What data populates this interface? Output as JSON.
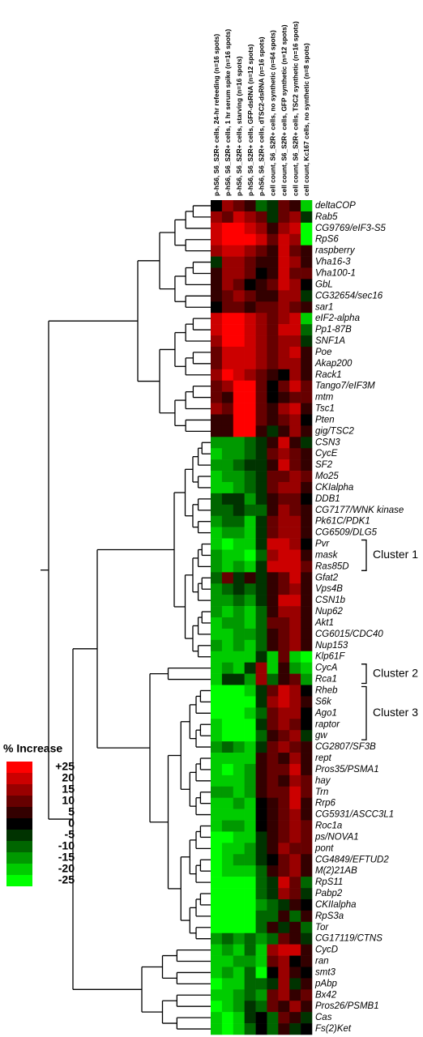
{
  "chart_data": {
    "type": "heatmap",
    "columns": [
      "p-hS6, S6_S2R+ cells, 24-hr refeeding (n=16 spots)",
      "p-hS6, S6_S2R+ cells, 1 hr serum spike (n=16 spots)",
      "p-hS6, S6_S2R+ cells, starving (n=16 spots)",
      "p-hS6, S6_S2R+ cells, GFP-dsRNA (n=12 spots)",
      "p-hS6, S6_S2R+ cells, dTSC2-dsRNA (n=16 spots)",
      "cell count, S6_S2R+ cells, no synthetic (n=64 spots)",
      "cell count, S6_S2R+ cells, GFP synthetic (n=12 spots)",
      "cell count, S6_S2R+ cells, TSC2 synthetic (n=16 spots)",
      "cell count, Kc167 cells, no synthetic (n=8 spots)"
    ],
    "rows": [
      "deltaCOP",
      "Rab5",
      "CG9769/eIF3-S5",
      "RpS6",
      "raspberry",
      "Vha16-3",
      "Vha100-1",
      "GbL",
      "CG32654/sec16",
      "sar1",
      "eIF2-alpha",
      "Pp1-87B",
      "SNF1A",
      "Poe",
      "Akap200",
      "Rack1",
      "Tango7/eIF3M",
      "mtm",
      "Tsc1",
      "Pten",
      "gig/TSC2",
      "CSN3",
      "CycE",
      "SF2",
      "Mo25",
      "CKIalpha",
      "DDB1",
      "CG7177/WNK kinase",
      "Pk61C/PDK1",
      "CG6509/DLG5",
      "Pvr",
      "mask",
      "Ras85D",
      "Gfat2",
      "Vps4B",
      "CSN1b",
      "Nup62",
      "Akt1",
      "CG6015/CDC40",
      "Nup153",
      "Klp61F",
      "CycA",
      "Rca1",
      "Rheb",
      "S6k",
      "Ago1",
      "raptor",
      "gw",
      "CG2807/SF3B",
      "rept",
      "Pros35/PSMA1",
      "hay",
      "Trn",
      "Rrp6",
      "CG5931/ASCC3L1",
      "Roc1a",
      "ps/NOVA1",
      "pont",
      "CG4849/EFTUD2",
      "M(2)21AB",
      "RpS11",
      "Pabp2",
      "CKIIalpha",
      "RpS3a",
      "Tor",
      "CG17119/CTNS",
      "CycD",
      "ran",
      "smt3",
      "pAbp",
      "Bx42",
      "Pros26/PSMB1",
      "Cas",
      "Fs(2)Ket"
    ],
    "values": [
      [
        0,
        15,
        10,
        5,
        -10,
        -5,
        10,
        5,
        -20
      ],
      [
        15,
        10,
        20,
        15,
        10,
        -5,
        10,
        15,
        -5
      ],
      [
        20,
        25,
        25,
        20,
        15,
        5,
        15,
        20,
        -25
      ],
      [
        20,
        25,
        25,
        25,
        20,
        10,
        20,
        15,
        -25
      ],
      [
        15,
        20,
        20,
        15,
        10,
        5,
        20,
        10,
        5
      ],
      [
        -5,
        15,
        15,
        10,
        5,
        5,
        20,
        15,
        5
      ],
      [
        5,
        15,
        15,
        10,
        0,
        5,
        20,
        10,
        10
      ],
      [
        5,
        15,
        10,
        0,
        5,
        10,
        20,
        15,
        0
      ],
      [
        5,
        10,
        15,
        10,
        5,
        5,
        15,
        15,
        -5
      ],
      [
        0,
        10,
        10,
        5,
        10,
        10,
        15,
        10,
        5
      ],
      [
        20,
        25,
        25,
        20,
        15,
        10,
        15,
        20,
        -20
      ],
      [
        20,
        25,
        25,
        20,
        15,
        10,
        20,
        20,
        -10
      ],
      [
        15,
        25,
        25,
        20,
        15,
        10,
        15,
        15,
        -5
      ],
      [
        10,
        20,
        20,
        20,
        15,
        10,
        15,
        20,
        5
      ],
      [
        10,
        20,
        20,
        20,
        15,
        10,
        15,
        15,
        5
      ],
      [
        15,
        25,
        20,
        15,
        10,
        5,
        0,
        15,
        5
      ],
      [
        10,
        15,
        25,
        25,
        10,
        0,
        10,
        20,
        10
      ],
      [
        10,
        5,
        25,
        25,
        10,
        0,
        5,
        10,
        10
      ],
      [
        15,
        10,
        25,
        25,
        10,
        5,
        15,
        20,
        5
      ],
      [
        5,
        5,
        25,
        25,
        10,
        5,
        10,
        15,
        0
      ],
      [
        5,
        5,
        25,
        25,
        5,
        -5,
        5,
        15,
        5
      ],
      [
        -15,
        -15,
        -15,
        -10,
        -5,
        5,
        20,
        5,
        -5
      ],
      [
        -20,
        -15,
        -15,
        -10,
        -5,
        10,
        15,
        10,
        5
      ],
      [
        -15,
        -15,
        -10,
        -5,
        -5,
        5,
        20,
        10,
        5
      ],
      [
        -20,
        -15,
        -15,
        -10,
        -5,
        10,
        10,
        15,
        10
      ],
      [
        -20,
        -20,
        -15,
        -10,
        -5,
        10,
        15,
        15,
        5
      ],
      [
        -10,
        -5,
        -5,
        -15,
        -5,
        5,
        10,
        10,
        0
      ],
      [
        -10,
        -10,
        -5,
        -10,
        -10,
        5,
        15,
        10,
        5
      ],
      [
        -15,
        -10,
        -10,
        -20,
        -5,
        10,
        15,
        15,
        5
      ],
      [
        -20,
        -15,
        -15,
        -20,
        -5,
        10,
        15,
        15,
        5
      ],
      [
        -20,
        -25,
        -20,
        -20,
        -5,
        20,
        20,
        15,
        0
      ],
      [
        -15,
        -20,
        -20,
        -25,
        -10,
        15,
        20,
        20,
        5
      ],
      [
        -15,
        -20,
        -15,
        -20,
        -5,
        20,
        20,
        20,
        10
      ],
      [
        -10,
        10,
        -5,
        5,
        -5,
        5,
        10,
        20,
        5
      ],
      [
        -15,
        -10,
        -5,
        -10,
        -5,
        5,
        10,
        15,
        5
      ],
      [
        -15,
        -15,
        -10,
        -15,
        -5,
        5,
        20,
        20,
        5
      ],
      [
        -15,
        -20,
        -15,
        -20,
        -10,
        5,
        15,
        15,
        5
      ],
      [
        -20,
        -15,
        -15,
        -20,
        -10,
        10,
        10,
        15,
        5
      ],
      [
        -20,
        -20,
        -15,
        -15,
        -10,
        5,
        10,
        15,
        5
      ],
      [
        -15,
        -20,
        -15,
        -20,
        -10,
        5,
        10,
        15,
        5
      ],
      [
        -20,
        -20,
        -20,
        -20,
        -5,
        -20,
        10,
        -20,
        -25
      ],
      [
        -20,
        -15,
        -20,
        -5,
        15,
        -20,
        5,
        -15,
        -20
      ],
      [
        -20,
        -5,
        -5,
        -15,
        15,
        -10,
        5,
        10,
        -15
      ],
      [
        -25,
        -25,
        -25,
        -20,
        -5,
        10,
        20,
        15,
        0
      ],
      [
        -25,
        -25,
        -25,
        -25,
        -5,
        15,
        20,
        15,
        5
      ],
      [
        -25,
        -25,
        -25,
        -20,
        -10,
        10,
        15,
        15,
        0
      ],
      [
        -20,
        -25,
        -25,
        -25,
        -5,
        10,
        15,
        10,
        0
      ],
      [
        -20,
        -25,
        -25,
        -25,
        -10,
        5,
        10,
        15,
        -5
      ],
      [
        -15,
        -10,
        -15,
        -20,
        -5,
        10,
        15,
        10,
        5
      ],
      [
        -20,
        -20,
        -20,
        -20,
        5,
        10,
        5,
        15,
        5
      ],
      [
        -20,
        -25,
        -20,
        -15,
        5,
        10,
        10,
        20,
        5
      ],
      [
        -20,
        -20,
        -20,
        -15,
        5,
        10,
        5,
        15,
        10
      ],
      [
        -15,
        -15,
        -20,
        -15,
        5,
        10,
        10,
        20,
        10
      ],
      [
        -20,
        -20,
        -15,
        -20,
        0,
        5,
        10,
        20,
        5
      ],
      [
        -20,
        -20,
        -20,
        -20,
        0,
        5,
        10,
        15,
        5
      ],
      [
        -20,
        -15,
        -15,
        -20,
        0,
        5,
        10,
        15,
        10
      ],
      [
        -25,
        -25,
        -20,
        -20,
        -5,
        5,
        10,
        15,
        10
      ],
      [
        -25,
        -20,
        -20,
        -15,
        -5,
        5,
        15,
        10,
        10
      ],
      [
        -25,
        -20,
        -15,
        -15,
        -5,
        0,
        10,
        15,
        5
      ],
      [
        -25,
        -20,
        -20,
        -20,
        -10,
        5,
        10,
        15,
        5
      ],
      [
        -25,
        -25,
        -25,
        -25,
        -10,
        -5,
        20,
        10,
        -10
      ],
      [
        -25,
        -25,
        -25,
        -25,
        -10,
        -5,
        15,
        10,
        -5
      ],
      [
        -25,
        -25,
        -25,
        -25,
        -15,
        -10,
        -5,
        5,
        0
      ],
      [
        -25,
        -25,
        -25,
        -25,
        -10,
        -10,
        5,
        -10,
        5
      ],
      [
        -25,
        -25,
        -25,
        -25,
        -10,
        5,
        -5,
        5,
        -10
      ],
      [
        -15,
        -10,
        -15,
        -10,
        -15,
        -10,
        10,
        5,
        -5
      ],
      [
        -20,
        -15,
        -20,
        -10,
        -20,
        15,
        20,
        20,
        5
      ],
      [
        -20,
        -20,
        -15,
        -15,
        -20,
        10,
        15,
        0,
        5
      ],
      [
        -20,
        -15,
        -20,
        -10,
        -25,
        0,
        15,
        5,
        0
      ],
      [
        -25,
        -20,
        -20,
        -10,
        -10,
        -5,
        15,
        -5,
        5
      ],
      [
        -20,
        -20,
        -15,
        -10,
        -15,
        10,
        15,
        5,
        10
      ],
      [
        -25,
        -20,
        -15,
        -5,
        -10,
        10,
        5,
        15,
        5
      ],
      [
        -20,
        -25,
        -20,
        -5,
        0,
        -10,
        10,
        5,
        -5
      ],
      [
        -20,
        -25,
        -20,
        -10,
        0,
        -10,
        5,
        -5,
        0
      ]
    ],
    "clim": [
      -25,
      25
    ],
    "low_color": "#00ff00",
    "mid_color": "#000000",
    "high_color": "#ff0000",
    "legend_title": "% Increase",
    "legend_ticks": [
      {
        "value": 25,
        "label": "+25"
      },
      20,
      15,
      10,
      5,
      0,
      -5,
      -10,
      -15,
      -20,
      -25
    ],
    "clusters": [
      "Cluster 1",
      "Cluster 2",
      "Cluster 3"
    ]
  }
}
